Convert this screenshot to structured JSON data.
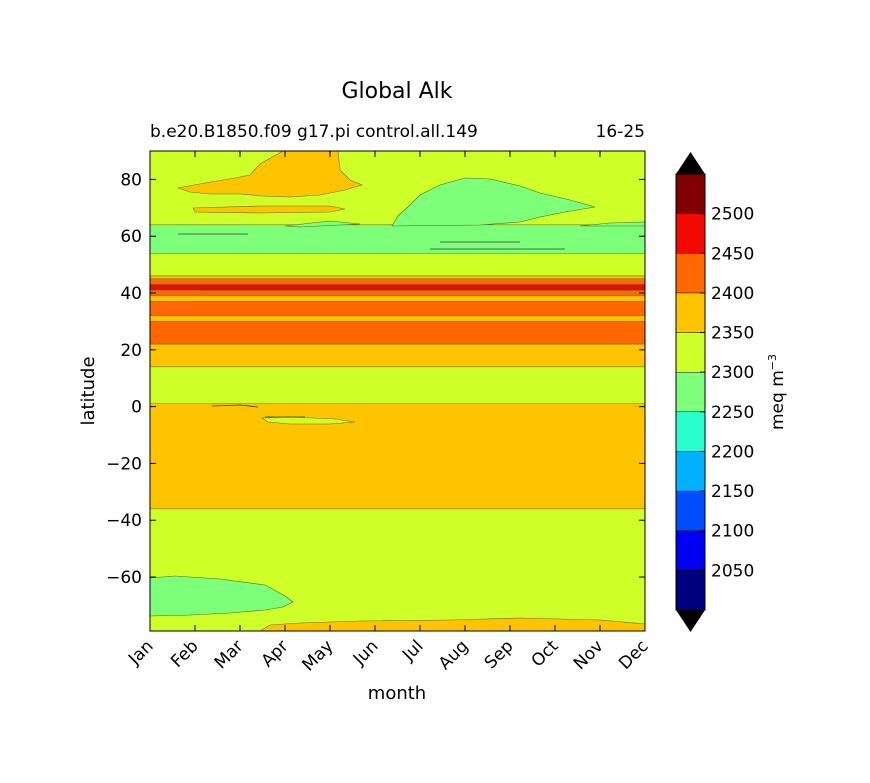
{
  "chart_data": {
    "type": "heatmap",
    "title": "Global Alk",
    "subtitle_left": "b.e20.B1850.f09 g17.pi control.all.149",
    "subtitle_right": "16-25",
    "xlabel": "month",
    "ylabel": "latitude",
    "x_categories": [
      "Jan",
      "Feb",
      "Mar",
      "Apr",
      "May",
      "Jun",
      "Jul",
      "Aug",
      "Sep",
      "Oct",
      "Nov",
      "Dec"
    ],
    "ylim": [
      -79,
      90
    ],
    "yticks": [
      -60,
      -40,
      -20,
      0,
      20,
      40,
      60,
      80
    ],
    "colorbar": {
      "label": "meq m",
      "label_superscript": "−3",
      "levels": [
        2000,
        2050,
        2100,
        2150,
        2200,
        2250,
        2300,
        2350,
        2400,
        2450,
        2500,
        2550
      ],
      "tick_labels": [
        "2050",
        "2100",
        "2150",
        "2200",
        "2250",
        "2300",
        "2350",
        "2400",
        "2450",
        "2500"
      ],
      "colors": [
        "#000080",
        "#0000f1",
        "#004dff",
        "#00b1ff",
        "#29ffce",
        "#7dff7a",
        "#ceff29",
        "#ffc400",
        "#ff6800",
        "#f10800",
        "#800000"
      ],
      "extend_min_color": "#000000",
      "extend_max_color": "#000000"
    },
    "bands": [
      {
        "lat_min": 64,
        "lat_max": 90,
        "value_bin": "2300-2350"
      },
      {
        "lat_min": 54,
        "lat_max": 64,
        "value_bin": "2250-2300"
      },
      {
        "lat_min": 46,
        "lat_max": 54,
        "value_bin": "2300-2350"
      },
      {
        "lat_min": 45,
        "lat_max": 46,
        "value_bin": "2350-2400"
      },
      {
        "lat_min": 43,
        "lat_max": 45,
        "value_bin": "2400-2450"
      },
      {
        "lat_min": 41,
        "lat_max": 43,
        "value_bin": "2450-2500"
      },
      {
        "lat_min": 39,
        "lat_max": 41,
        "value_bin": "2400-2450"
      },
      {
        "lat_min": 37,
        "lat_max": 39,
        "value_bin": "2350-2400"
      },
      {
        "lat_min": 32,
        "lat_max": 37,
        "value_bin": "2400-2450"
      },
      {
        "lat_min": 30,
        "lat_max": 32,
        "value_bin": "2350-2400"
      },
      {
        "lat_min": 22,
        "lat_max": 30,
        "value_bin": "2400-2450"
      },
      {
        "lat_min": 14,
        "lat_max": 22,
        "value_bin": "2350-2400"
      },
      {
        "lat_min": 1,
        "lat_max": 14,
        "value_bin": "2300-2350"
      },
      {
        "lat_min": -36,
        "lat_max": 1,
        "value_bin": "2350-2400"
      },
      {
        "lat_min": -79,
        "lat_max": -36,
        "value_bin": "2300-2350"
      }
    ]
  }
}
